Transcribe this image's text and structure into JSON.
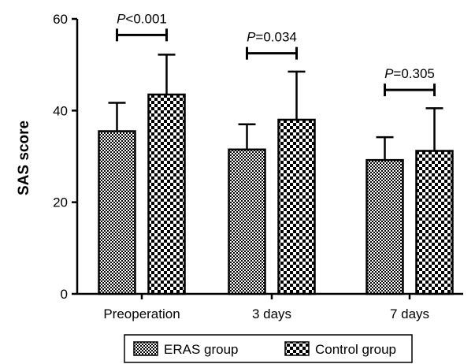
{
  "chart_data": {
    "type": "bar",
    "title": "",
    "xlabel": "",
    "ylabel": "SAS score",
    "ylim": [
      0,
      60
    ],
    "yticks": [
      "0",
      "20",
      "40",
      "60"
    ],
    "categories": [
      "Preoperation",
      "3 days",
      "7 days"
    ],
    "series": [
      {
        "name": "ERAS group",
        "values": [
          35.5,
          31.5,
          29.2
        ],
        "errors": [
          6.2,
          5.5,
          5.0
        ],
        "pattern": "fine-checker"
      },
      {
        "name": "Control group",
        "values": [
          43.5,
          38.0,
          31.2
        ],
        "errors": [
          8.7,
          10.5,
          9.3
        ],
        "pattern": "coarse-checker"
      }
    ],
    "annotations": [
      {
        "category": "Preoperation",
        "prefix": "P",
        "text": "<0.001",
        "y": 56.5
      },
      {
        "category": "3 days",
        "prefix": "P",
        "text": "=0.034",
        "y": 52.5
      },
      {
        "category": "7 days",
        "prefix": "P",
        "text": "=0.305",
        "y": 44.5
      }
    ],
    "grid": false,
    "legend_position": "bottom"
  }
}
